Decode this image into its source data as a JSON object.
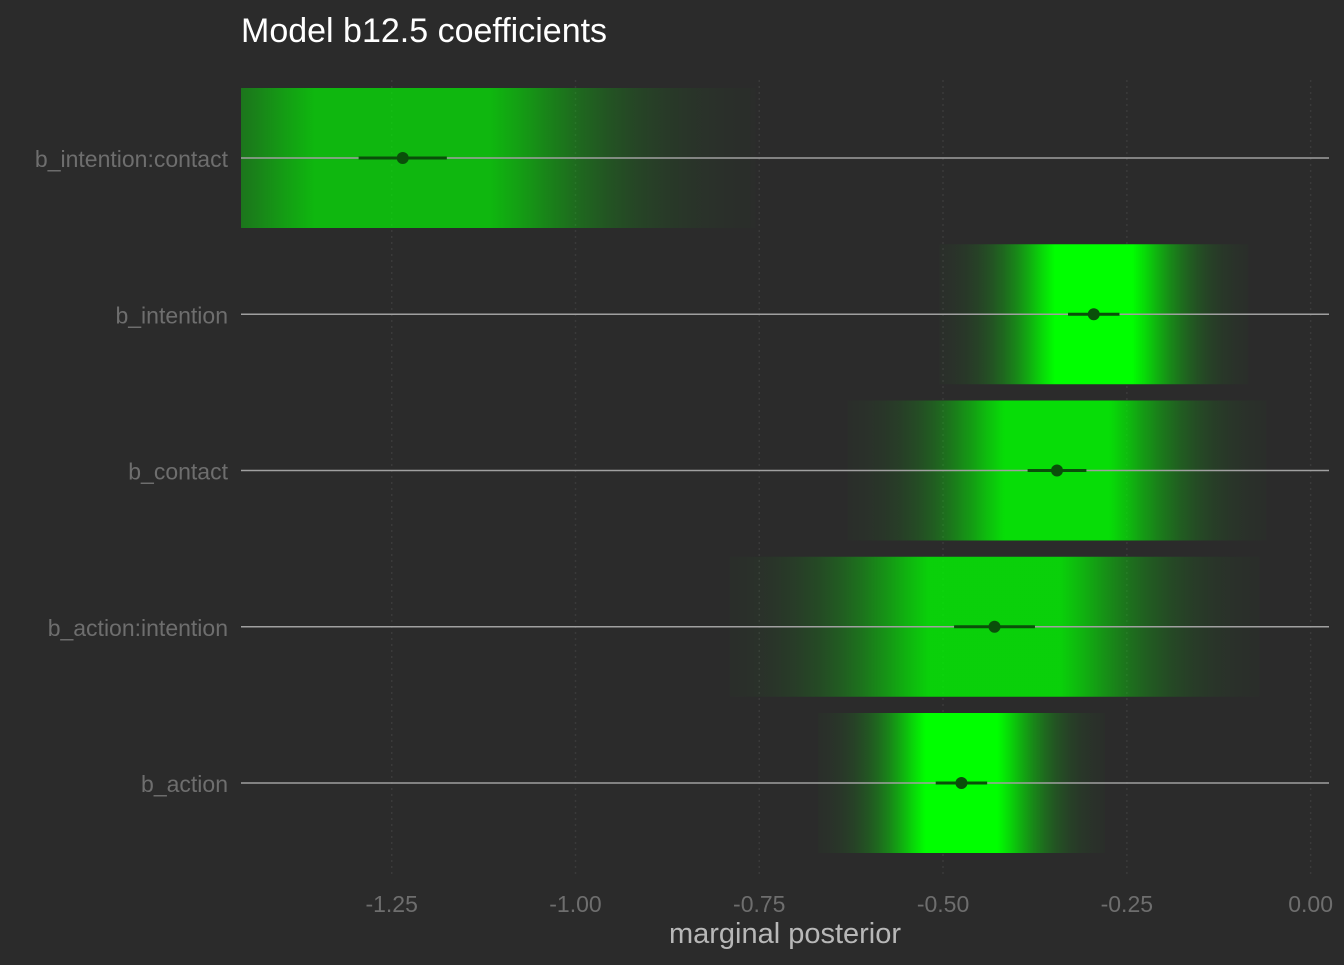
{
  "chart_data": {
    "type": "interval",
    "title": "Model b12.5 coefficients",
    "xlabel": "marginal posterior",
    "ylabel": "",
    "xlim": [
      -1.455,
      0.025
    ],
    "xticks": [
      -1.25,
      -1.0,
      -0.75,
      -0.5,
      -0.25,
      0.0
    ],
    "xtick_labels": [
      "-1.25",
      "-1.00",
      "-0.75",
      "-0.50",
      "-0.25",
      "0.00"
    ],
    "grid": "vertical dotted at x ticks",
    "colors": {
      "background": "#2b2b2b",
      "fill_peak": "#00ff00",
      "point": "#0a4f0a",
      "rule": "#a0a0a0"
    },
    "series": [
      {
        "label": "b_intention:contact",
        "mean": -1.235,
        "inner": [
          -1.295,
          -1.175
        ],
        "dist_sd": 0.16,
        "peak_intensity": 0.66
      },
      {
        "label": "b_intention",
        "mean": -0.295,
        "inner": [
          -0.33,
          -0.26
        ],
        "dist_sd": 0.07,
        "peak_intensity": 1.0
      },
      {
        "label": "b_contact",
        "mean": -0.345,
        "inner": [
          -0.385,
          -0.305
        ],
        "dist_sd": 0.095,
        "peak_intensity": 0.84
      },
      {
        "label": "b_action:intention",
        "mean": -0.43,
        "inner": [
          -0.485,
          -0.375
        ],
        "dist_sd": 0.12,
        "peak_intensity": 0.78
      },
      {
        "label": "b_action",
        "mean": -0.475,
        "inner": [
          -0.51,
          -0.44
        ],
        "dist_sd": 0.065,
        "peak_intensity": 1.0
      }
    ]
  }
}
